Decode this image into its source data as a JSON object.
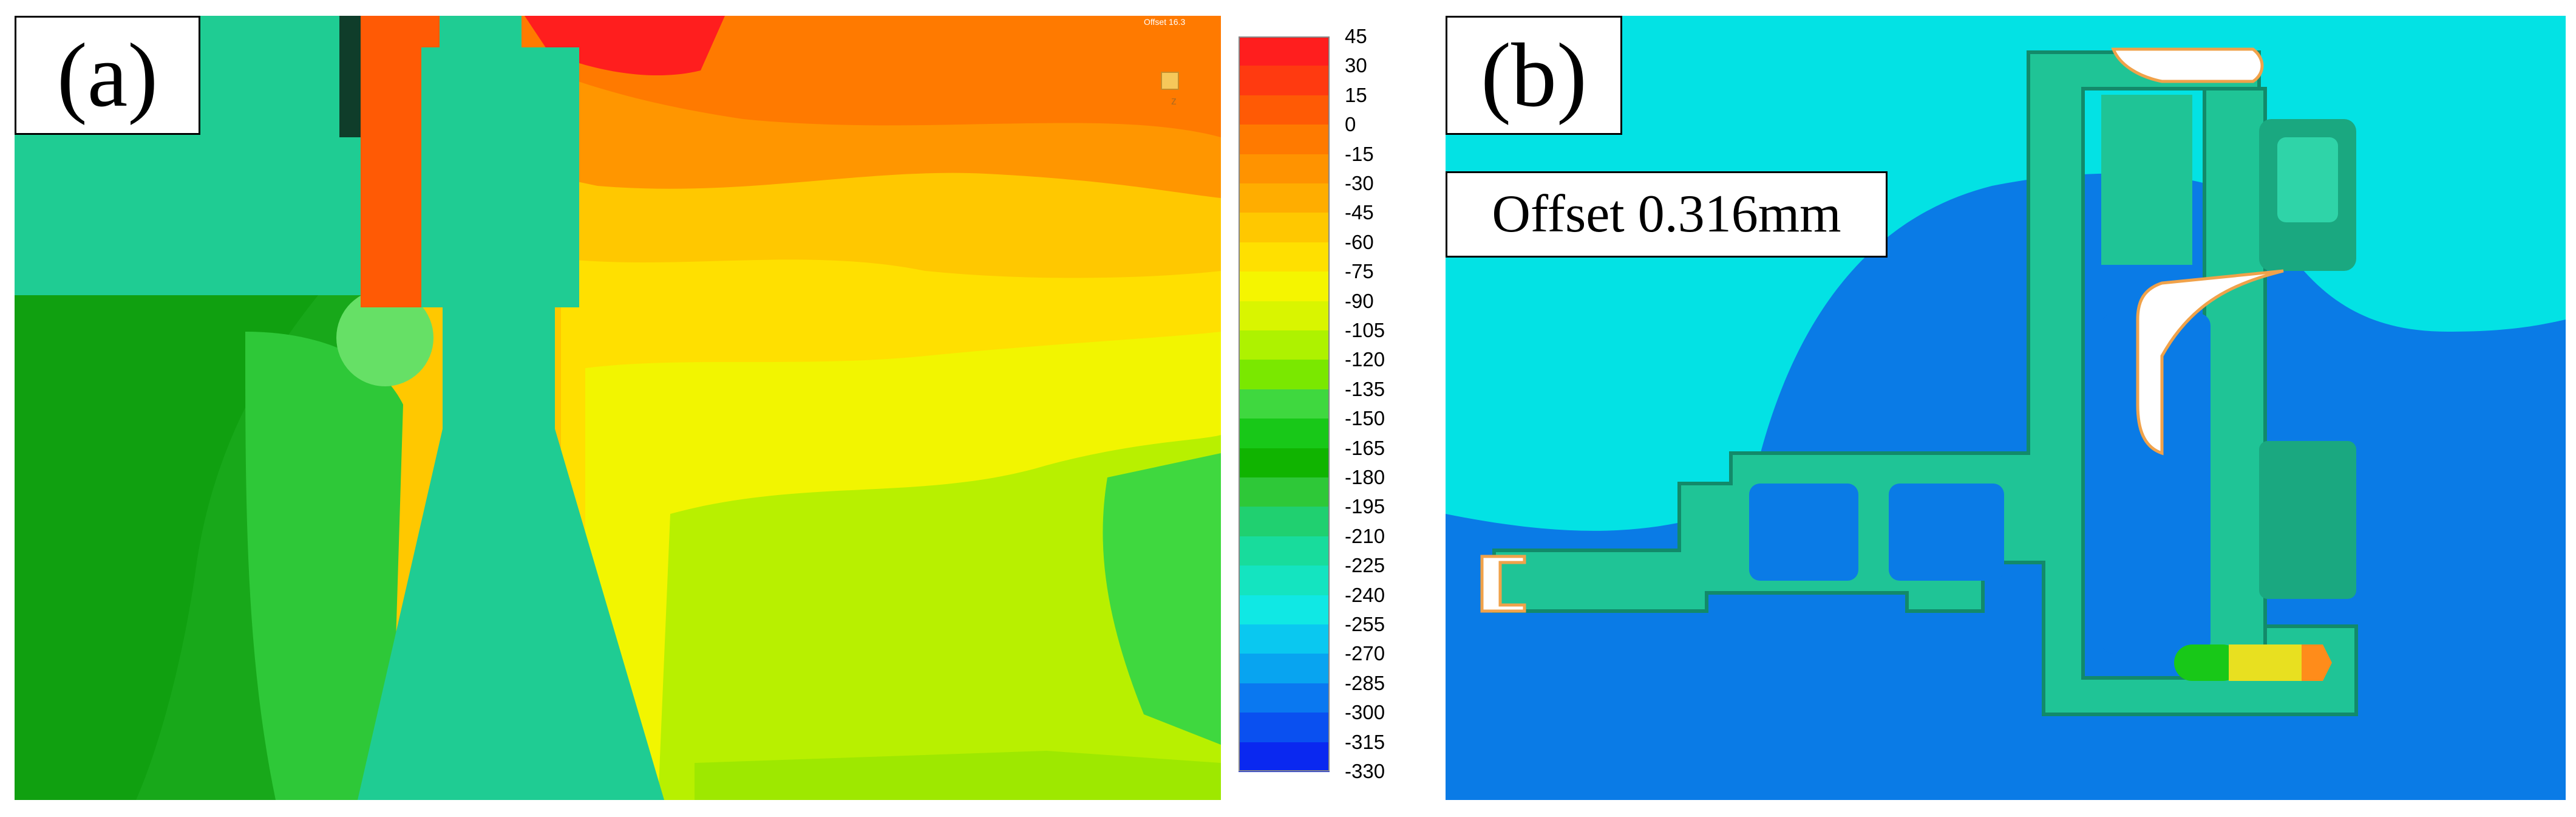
{
  "panel_a": {
    "label": "(a)",
    "small_tag": "Offset 16.3",
    "probe_marker": "z"
  },
  "panel_b": {
    "label": "(b)",
    "offset_text": "Offset 0.316mm"
  },
  "colorbar": {
    "ticks": [
      "45",
      "30",
      "15",
      "0",
      "-15",
      "-30",
      "-45",
      "-60",
      "-75",
      "-90",
      "-105",
      "-120",
      "-135",
      "-150",
      "-165",
      "-180",
      "-195",
      "-210",
      "-225",
      "-240",
      "-255",
      "-270",
      "-285",
      "-300",
      "-315",
      "-330"
    ],
    "colors": [
      "#ff1e1e",
      "#ff3a10",
      "#ff5a05",
      "#ff7a00",
      "#ff9300",
      "#ffad00",
      "#ffc800",
      "#ffe000",
      "#f5f500",
      "#d9f500",
      "#aef200",
      "#7ae800",
      "#3fd83f",
      "#18c818",
      "#10b400",
      "#2ec838",
      "#20d070",
      "#18dc9c",
      "#14e4c0",
      "#10e8e4",
      "#0ac8f0",
      "#08a4f0",
      "#0a78f0",
      "#0a50f0",
      "#0a28f0"
    ]
  }
}
